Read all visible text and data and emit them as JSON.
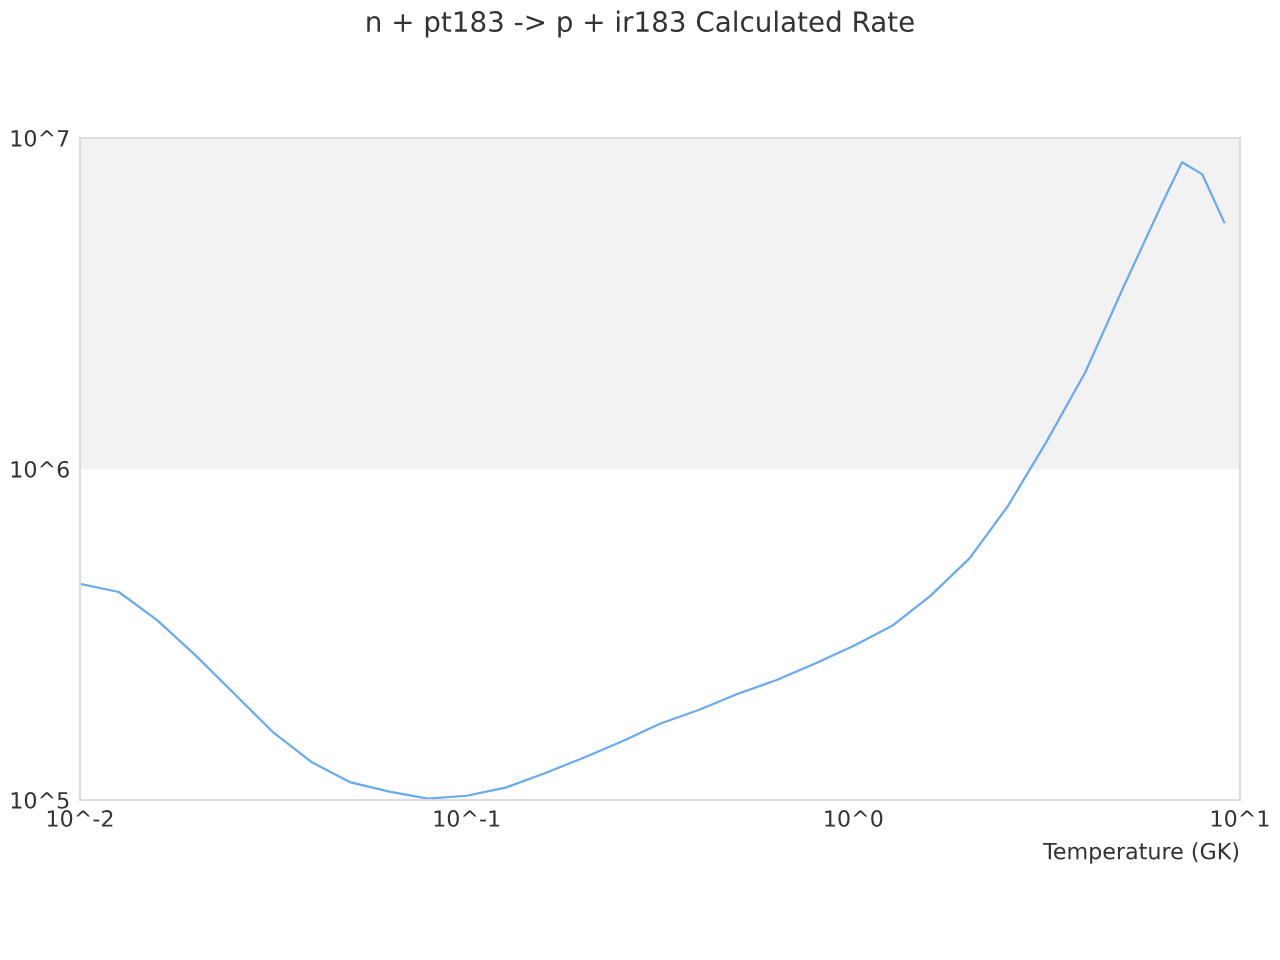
{
  "chart_data": {
    "type": "line",
    "title": "n + pt183 -> p + ir183 Calculated Rate",
    "xlabel": "Temperature (GK)",
    "log": "xy",
    "x": [
      0.01,
      0.0126,
      0.0158,
      0.02,
      0.0251,
      0.0316,
      0.0398,
      0.0501,
      0.0631,
      0.0794,
      0.1,
      0.126,
      0.158,
      0.2,
      0.251,
      0.316,
      0.398,
      0.501,
      0.631,
      0.794,
      1,
      1.26,
      1.58,
      2,
      2.51,
      3.16,
      3.98,
      5.01,
      6.28,
      7.08,
      7.98,
      9.1
    ],
    "series": [
      {
        "color": "#6aaaf0",
        "values": [
          450000,
          425000,
          350000,
          272000,
          209000,
          160000,
          130000,
          113000,
          106000,
          101000,
          103000,
          109000,
          120000,
          134000,
          150000,
          170000,
          187000,
          209000,
          230000,
          258000,
          292000,
          336000,
          413000,
          538000,
          773000,
          1210000,
          1960000,
          3570000,
          6320000,
          8450000,
          7780000,
          5570000
        ]
      }
    ],
    "xlim": [
      0.01,
      10
    ],
    "ylim": [
      100000,
      10000000
    ],
    "xticks": [
      {
        "value": 0.01,
        "label": "10^-2"
      },
      {
        "value": 0.1,
        "label": "10^-1"
      },
      {
        "value": 1,
        "label": "10^0"
      },
      {
        "value": 10,
        "label": "10^1"
      }
    ],
    "yticks": [
      {
        "value": 100000,
        "label": "10^5"
      },
      {
        "value": 1000000,
        "label": "10^6"
      },
      {
        "value": 10000000,
        "label": "10^7"
      }
    ],
    "bands": [
      {
        "axis": "y",
        "from": 1000000,
        "to": 10000000,
        "color": "#f2f2f2"
      }
    ],
    "grid": false,
    "legend": false,
    "marker": "none",
    "line_style": "solid"
  }
}
